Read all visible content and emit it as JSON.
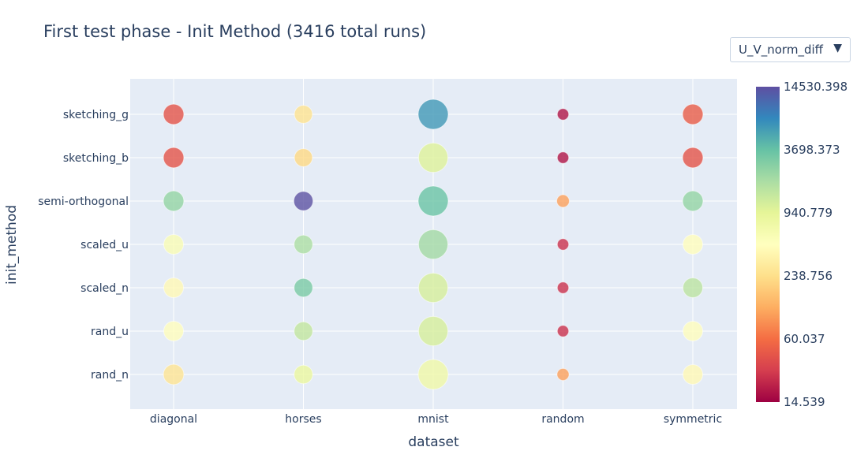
{
  "title": "First test phase - Init Method (3416 total runs)",
  "dropdown": {
    "selected": "U_V_norm_diff",
    "caret": "▼"
  },
  "colors": {
    "plot_bg": "#e5ecf6",
    "grid": "#ffffff",
    "text": "#2a3f5f",
    "colorscale": [
      "#9e0142",
      "#d53e4f",
      "#f46d43",
      "#fdae61",
      "#fee08b",
      "#ffffbf",
      "#e6f598",
      "#abdda4",
      "#66c2a5",
      "#3288bd",
      "#5e4fa2"
    ]
  },
  "chart_data": {
    "type": "scatter",
    "title": "First test phase - Init Method (3416 total runs)",
    "xlabel": "dataset",
    "ylabel": "init_method",
    "categories": [
      "diagonal",
      "horses",
      "mnist",
      "random",
      "symmetric"
    ],
    "y_categories": [
      "rand_n",
      "rand_u",
      "scaled_n",
      "scaled_u",
      "semi-orthogonal",
      "sketching_b",
      "sketching_g"
    ],
    "color_metric": "U_V_norm_diff",
    "colorscale_name": "Spectral",
    "colorbar": {
      "ticks": [
        "14530.398",
        "3698.373",
        "940.779",
        "238.756",
        "60.037",
        "14.539"
      ],
      "min": 14.539,
      "max": 14530.398,
      "log_scale": true
    },
    "points": [
      {
        "x": "diagonal",
        "y": "sketching_g",
        "value": 40,
        "size_rel": 0.68
      },
      {
        "x": "horses",
        "y": "sketching_g",
        "value": 250,
        "size_rel": 0.6
      },
      {
        "x": "mnist",
        "y": "sketching_g",
        "value": 6000,
        "size_rel": 1.0
      },
      {
        "x": "random",
        "y": "sketching_g",
        "value": 18,
        "size_rel": 0.38
      },
      {
        "x": "symmetric",
        "y": "sketching_g",
        "value": 45,
        "size_rel": 0.68
      },
      {
        "x": "diagonal",
        "y": "sketching_b",
        "value": 40,
        "size_rel": 0.68
      },
      {
        "x": "horses",
        "y": "sketching_b",
        "value": 210,
        "size_rel": 0.6
      },
      {
        "x": "mnist",
        "y": "sketching_b",
        "value": 1000,
        "size_rel": 0.98
      },
      {
        "x": "random",
        "y": "sketching_b",
        "value": 18,
        "size_rel": 0.38
      },
      {
        "x": "symmetric",
        "y": "sketching_b",
        "value": 40,
        "size_rel": 0.68
      },
      {
        "x": "diagonal",
        "y": "semi-orthogonal",
        "value": 2300,
        "size_rel": 0.68
      },
      {
        "x": "horses",
        "y": "semi-orthogonal",
        "value": 14000,
        "size_rel": 0.64
      },
      {
        "x": "mnist",
        "y": "semi-orthogonal",
        "value": 3500,
        "size_rel": 1.0
      },
      {
        "x": "random",
        "y": "semi-orthogonal",
        "value": 100,
        "size_rel": 0.42
      },
      {
        "x": "symmetric",
        "y": "semi-orthogonal",
        "value": 2300,
        "size_rel": 0.68
      },
      {
        "x": "diagonal",
        "y": "scaled_u",
        "value": 550,
        "size_rel": 0.66
      },
      {
        "x": "horses",
        "y": "scaled_u",
        "value": 1800,
        "size_rel": 0.62
      },
      {
        "x": "mnist",
        "y": "scaled_u",
        "value": 2000,
        "size_rel": 0.98
      },
      {
        "x": "random",
        "y": "scaled_u",
        "value": 25,
        "size_rel": 0.38
      },
      {
        "x": "symmetric",
        "y": "scaled_u",
        "value": 450,
        "size_rel": 0.66
      },
      {
        "x": "diagonal",
        "y": "scaled_n",
        "value": 400,
        "size_rel": 0.66
      },
      {
        "x": "horses",
        "y": "scaled_n",
        "value": 3000,
        "size_rel": 0.62
      },
      {
        "x": "mnist",
        "y": "scaled_n",
        "value": 1100,
        "size_rel": 0.98
      },
      {
        "x": "random",
        "y": "scaled_n",
        "value": 25,
        "size_rel": 0.38
      },
      {
        "x": "symmetric",
        "y": "scaled_n",
        "value": 1500,
        "size_rel": 0.66
      },
      {
        "x": "diagonal",
        "y": "rand_u",
        "value": 450,
        "size_rel": 0.66
      },
      {
        "x": "horses",
        "y": "rand_u",
        "value": 1400,
        "size_rel": 0.62
      },
      {
        "x": "mnist",
        "y": "rand_u",
        "value": 1100,
        "size_rel": 0.98
      },
      {
        "x": "random",
        "y": "rand_u",
        "value": 25,
        "size_rel": 0.38
      },
      {
        "x": "symmetric",
        "y": "rand_u",
        "value": 450,
        "size_rel": 0.66
      },
      {
        "x": "diagonal",
        "y": "rand_n",
        "value": 260,
        "size_rel": 0.68
      },
      {
        "x": "horses",
        "y": "rand_n",
        "value": 800,
        "size_rel": 0.62
      },
      {
        "x": "mnist",
        "y": "rand_n",
        "value": 700,
        "size_rel": 1.0
      },
      {
        "x": "random",
        "y": "rand_n",
        "value": 100,
        "size_rel": 0.4
      },
      {
        "x": "symmetric",
        "y": "rand_n",
        "value": 400,
        "size_rel": 0.66
      }
    ]
  }
}
